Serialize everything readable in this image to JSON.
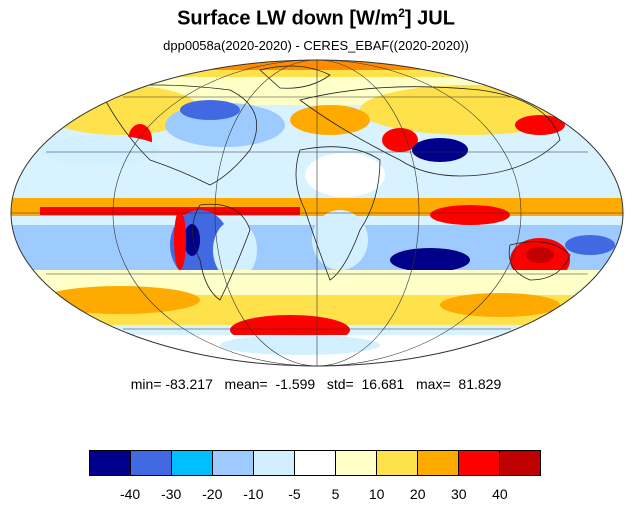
{
  "title": {
    "main_pre": "Surface LW down [W/m",
    "sup": "2",
    "main_post": "]  JUL"
  },
  "subtitle": "dpp0058a(2020-2020) - CERES_EBAF((2020-2020))",
  "stats": {
    "text": "min= -83.217   mean=  -1.599   std=  16.681   max=  81.829"
  },
  "map": {
    "projection": "Mollweide",
    "field": "Surface LW down difference",
    "units": "W/m2",
    "month": "JUL"
  },
  "colorbar": {
    "colors": [
      "#00008b",
      "#4169e1",
      "#00bfff",
      "#9ecbff",
      "#d2f0ff",
      "#ffffff",
      "#ffffc8",
      "#ffe14b",
      "#ffaa00",
      "#ff0000",
      "#c00000"
    ],
    "tick_labels": [
      "-40",
      "-30",
      "-20",
      "-10",
      "-5",
      "5",
      "10",
      "20",
      "30",
      "40"
    ]
  }
}
